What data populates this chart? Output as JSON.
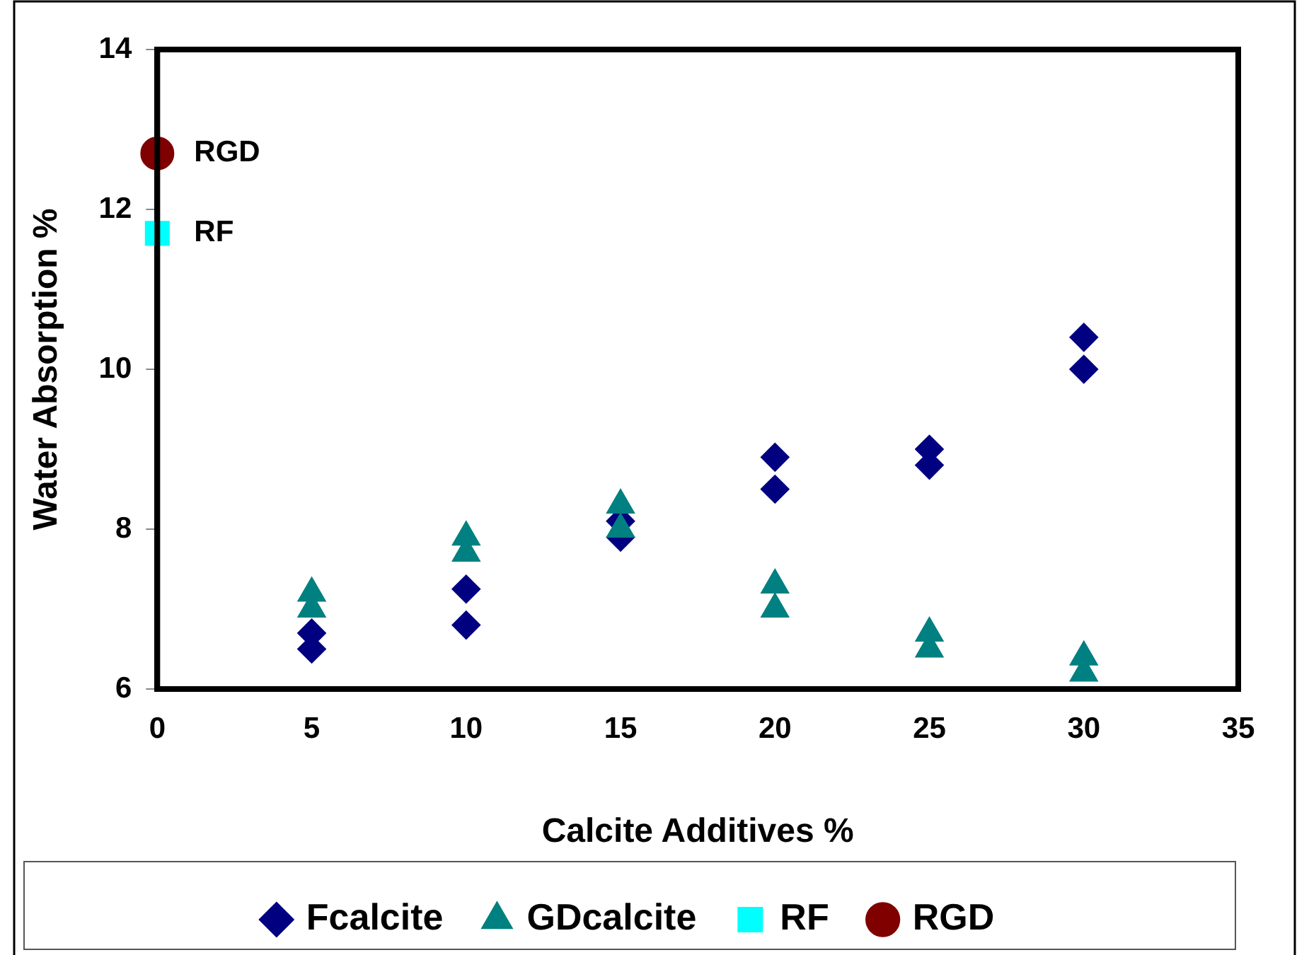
{
  "chart_data": {
    "type": "scatter",
    "xlabel": "Calcite Additives %",
    "ylabel": "Water Absorption %",
    "xlim": [
      0,
      35
    ],
    "xticks": [
      0,
      5,
      10,
      15,
      20,
      25,
      30,
      35
    ],
    "ylim": [
      6,
      14
    ],
    "yticks": [
      6,
      8,
      10,
      12,
      14
    ],
    "grid": false,
    "legend": "bottom",
    "series": [
      {
        "name": "Fcalcite",
        "color": "#000080",
        "marker": "diamond",
        "x": [
          5,
          5,
          10,
          10,
          15,
          15,
          20,
          20,
          25,
          25,
          30,
          30
        ],
        "values": [
          6.5,
          6.7,
          6.8,
          7.25,
          7.9,
          8.1,
          8.5,
          8.9,
          8.8,
          9.0,
          10.0,
          10.4
        ]
      },
      {
        "name": "GDcalcite",
        "color": "#008080",
        "marker": "triangle",
        "x": [
          5,
          5,
          10,
          10,
          15,
          15,
          20,
          20,
          25,
          25,
          30,
          30
        ],
        "values": [
          7.0,
          7.2,
          7.7,
          7.9,
          8.0,
          8.3,
          7.0,
          7.3,
          6.5,
          6.7,
          6.2,
          6.4
        ]
      },
      {
        "name": "RF",
        "type": "line",
        "color": "#00ffff",
        "marker": "square",
        "x": [
          0
        ],
        "values": [
          11.7
        ]
      },
      {
        "name": "RGD",
        "type": "line",
        "color": "#800000",
        "marker": "circle",
        "x": [
          0
        ],
        "values": [
          12.7
        ]
      }
    ]
  }
}
